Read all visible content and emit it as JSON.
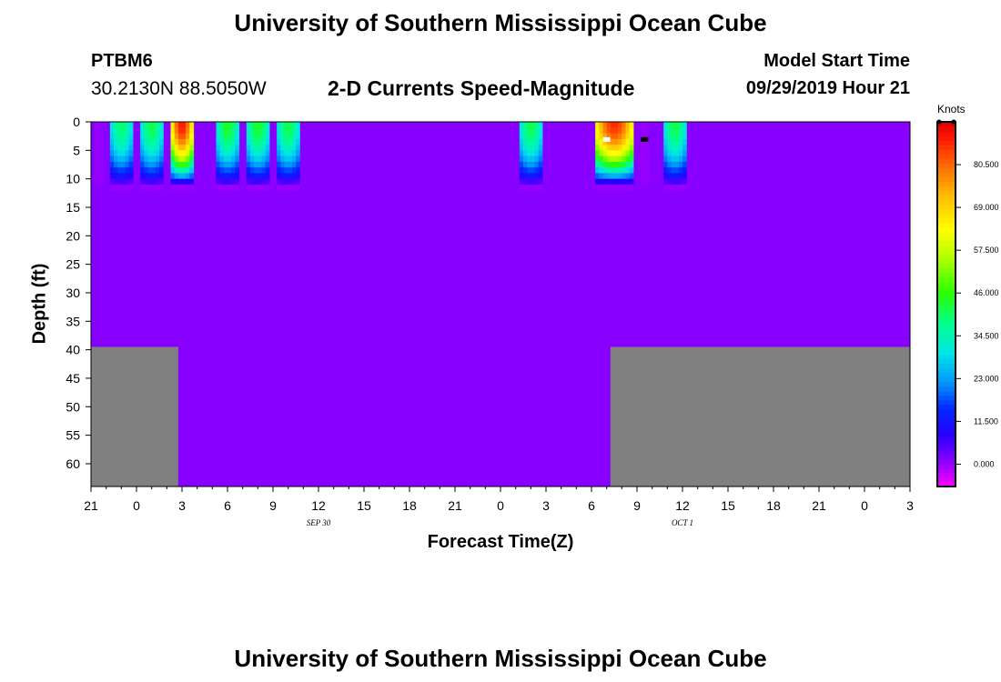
{
  "header": {
    "main_title": "University of Southern Mississippi Ocean Cube",
    "station_id": "PTBM6",
    "station_coords": "30.2130N 88.5050W",
    "plot_title": "2-D Currents Speed-Magnitude",
    "model_label": "Model Start Time",
    "model_time": "09/29/2019 Hour 21"
  },
  "footer": {
    "title": "University of Southern Mississippi Ocean Cube"
  },
  "chart_data": {
    "type": "heatmap",
    "title": "2-D Currents Speed-Magnitude",
    "xlabel": "Forecast Time(Z)",
    "ylabel": "Depth (ft)",
    "x_hours_range": [
      0,
      54
    ],
    "x_tick_labels": [
      "21",
      "0",
      "3",
      "6",
      "9",
      "12",
      "15",
      "18",
      "21",
      "0",
      "3",
      "6",
      "9",
      "12",
      "15",
      "18",
      "21",
      "0",
      "3"
    ],
    "date_labels": [
      {
        "hour": 15,
        "text": "SEP 30"
      },
      {
        "hour": 39,
        "text": "OCT 1"
      }
    ],
    "ylim": [
      0,
      64
    ],
    "y_reversed": true,
    "y_ticks": [
      0,
      5,
      10,
      15,
      20,
      25,
      30,
      35,
      40,
      45,
      50,
      55,
      60
    ],
    "colorbar": {
      "unit": "Knots",
      "range": [
        -6,
        92
      ],
      "ticks": [
        0,
        11.5,
        23,
        34.5,
        46,
        57.5,
        69,
        80.5
      ],
      "tick_labels": [
        "0.000",
        "11.500",
        "23.000",
        "34.500",
        "46.000",
        "57.500",
        "69.000",
        "80.500"
      ]
    },
    "background_speed": 1,
    "masked_color": "#808080",
    "masked_regions": [
      {
        "x": [
          0,
          5.75
        ],
        "depth": [
          39.5,
          64
        ]
      },
      {
        "x": [
          34.25,
          54
        ],
        "depth": [
          39.5,
          64
        ]
      }
    ],
    "surface_jets": [
      {
        "x_start": 0.25,
        "x_end": 0.75,
        "bottom_depth": 11,
        "peak": 0
      },
      {
        "x_start": 1.25,
        "x_end": 2.75,
        "bottom_depth": 11.5,
        "peak": 40
      },
      {
        "x_start": 3.25,
        "x_end": 4.75,
        "bottom_depth": 11.5,
        "peak": 42
      },
      {
        "x_start": 5.25,
        "x_end": 6.75,
        "bottom_depth": 11.5,
        "peak": 88
      },
      {
        "x_start": 8.25,
        "x_end": 9.75,
        "bottom_depth": 11.5,
        "peak": 44
      },
      {
        "x_start": 10.25,
        "x_end": 11.75,
        "bottom_depth": 11.5,
        "peak": 44
      },
      {
        "x_start": 12.25,
        "x_end": 13.75,
        "bottom_depth": 11.5,
        "peak": 42
      },
      {
        "x_start": 28.25,
        "x_end": 29.75,
        "bottom_depth": 11.5,
        "peak": 42
      },
      {
        "x_start": 33.25,
        "x_end": 35.75,
        "bottom_depth": 11.5,
        "peak": 86
      },
      {
        "x_start": 36.25,
        "x_end": 36.75,
        "bottom_depth": 11,
        "peak": 0
      },
      {
        "x_start": 37.75,
        "x_end": 39.25,
        "bottom_depth": 11.5,
        "peak": 42
      }
    ],
    "point_marks": [
      {
        "x": 34.0,
        "depth": 3,
        "color": "#ffffff"
      },
      {
        "x": 36.5,
        "depth": 3,
        "color": "#000000"
      }
    ]
  }
}
